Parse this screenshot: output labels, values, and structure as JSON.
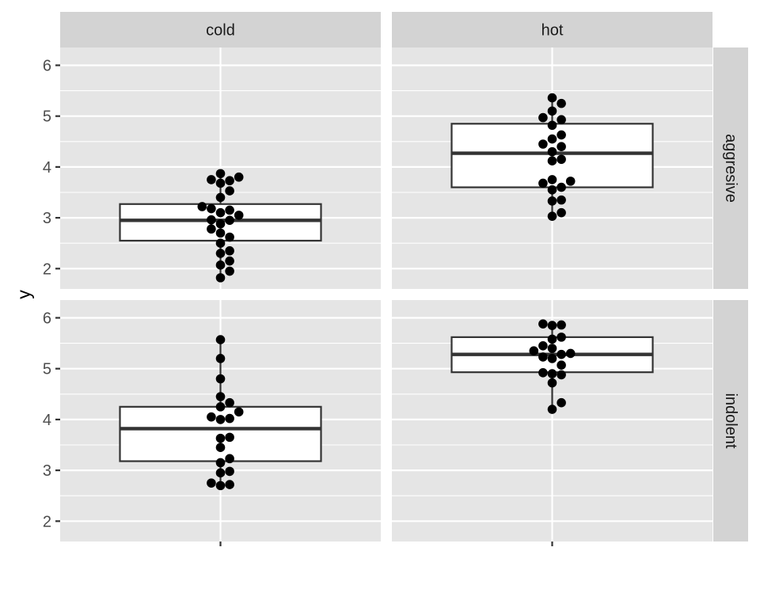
{
  "chart_data": {
    "type": "boxplot",
    "overlay": "dotplot",
    "ylabel": "y",
    "xlabel": "",
    "ylim": [
      1.6,
      6.35
    ],
    "y_ticks": [
      2,
      3,
      4,
      5,
      6
    ],
    "x_tick_labels": [
      ""
    ],
    "facet_cols": [
      "cold",
      "hot"
    ],
    "facet_rows": [
      "aggresive",
      "indolent"
    ],
    "grid": true,
    "panels": [
      {
        "col": "cold",
        "row": "aggresive",
        "box": {
          "q1": 2.55,
          "median": 2.95,
          "q3": 3.27,
          "whisker_low": 1.82,
          "whisker_high": 3.87
        },
        "points": [
          1.82,
          1.95,
          2.07,
          2.15,
          2.3,
          2.35,
          2.5,
          2.62,
          2.7,
          2.78,
          2.88,
          2.95,
          2.96,
          3.05,
          3.1,
          3.15,
          3.18,
          3.22,
          3.4,
          3.53,
          3.68,
          3.73,
          3.75,
          3.8,
          3.87
        ]
      },
      {
        "col": "hot",
        "row": "aggresive",
        "box": {
          "q1": 3.6,
          "median": 4.27,
          "q3": 4.85,
          "whisker_low": 3.03,
          "whisker_high": 5.36
        },
        "points": [
          3.03,
          3.1,
          3.33,
          3.35,
          3.55,
          3.6,
          3.68,
          3.72,
          3.75,
          4.12,
          4.15,
          4.3,
          4.4,
          4.45,
          4.55,
          4.63,
          4.82,
          4.93,
          4.97,
          5.1,
          5.25,
          5.36
        ]
      },
      {
        "col": "cold",
        "row": "indolent",
        "box": {
          "q1": 3.18,
          "median": 3.82,
          "q3": 4.25,
          "whisker_low": 2.7,
          "whisker_high": 5.57
        },
        "points": [
          2.7,
          2.72,
          2.75,
          2.95,
          2.98,
          3.15,
          3.23,
          3.45,
          3.63,
          3.65,
          4.0,
          4.02,
          4.05,
          4.15,
          4.25,
          4.33,
          4.45,
          4.8,
          5.2,
          5.57
        ]
      },
      {
        "col": "hot",
        "row": "indolent",
        "box": {
          "q1": 4.93,
          "median": 5.28,
          "q3": 5.62,
          "whisker_low": 4.2,
          "whisker_high": 5.88
        },
        "points": [
          4.2,
          4.33,
          4.72,
          4.88,
          4.9,
          4.92,
          5.07,
          5.2,
          5.23,
          5.28,
          5.3,
          5.35,
          5.4,
          5.45,
          5.58,
          5.62,
          5.85,
          5.86,
          5.88
        ]
      }
    ]
  }
}
